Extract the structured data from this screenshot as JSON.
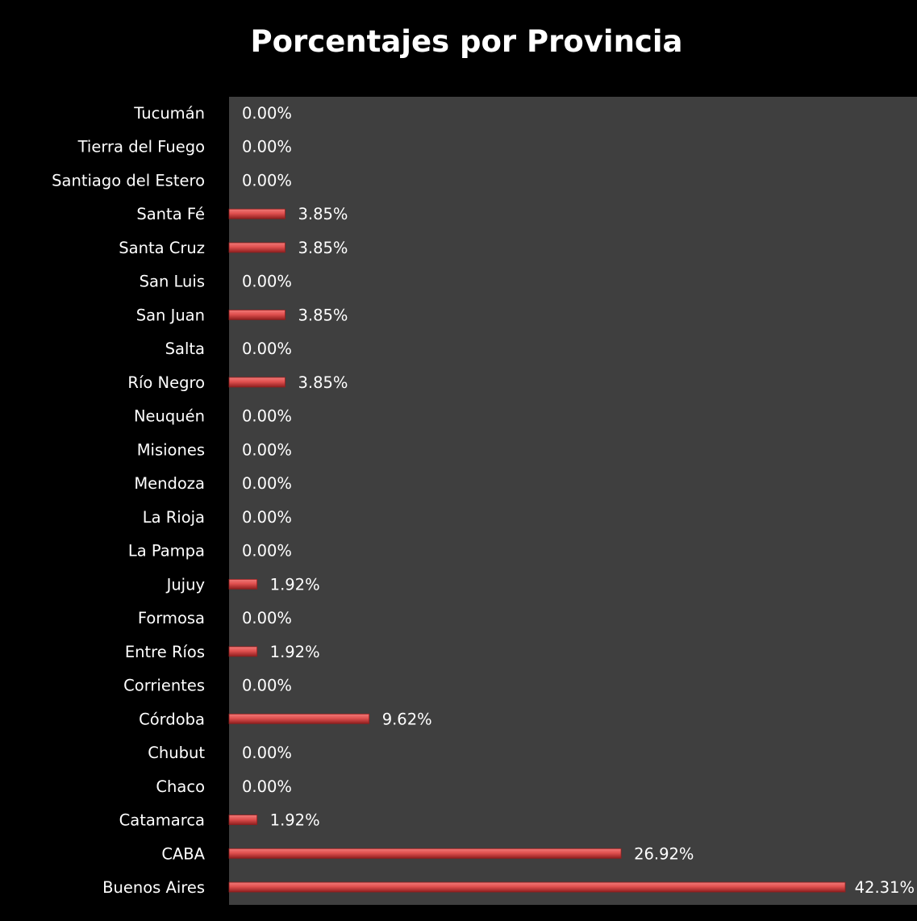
{
  "chart_data": {
    "type": "bar",
    "orientation": "horizontal",
    "title": "Porcentajes por Provincia",
    "categories": [
      "Tucumán",
      "Tierra del Fuego",
      "Santiago del Estero",
      "Santa Fé",
      "Santa Cruz",
      "San Luis",
      "San Juan",
      "Salta",
      "Río Negro",
      "Neuquén",
      "Misiones",
      "Mendoza",
      "La Rioja",
      "La Pampa",
      "Jujuy",
      "Formosa",
      "Entre Ríos",
      "Corrientes",
      "Córdoba",
      "Chubut",
      "Chaco",
      "Catamarca",
      "CABA",
      "Buenos Aires"
    ],
    "values": [
      0,
      0,
      0,
      3.85,
      3.85,
      0,
      3.85,
      0,
      3.85,
      0,
      0,
      0,
      0,
      0,
      1.92,
      0,
      1.92,
      0,
      9.62,
      0,
      0,
      1.92,
      26.92,
      42.31
    ],
    "value_labels": [
      "0.00%",
      "0.00%",
      "0.00%",
      "3.85%",
      "3.85%",
      "0.00%",
      "3.85%",
      "0.00%",
      "3.85%",
      "0.00%",
      "0.00%",
      "0.00%",
      "0.00%",
      "0.00%",
      "1.92%",
      "0.00%",
      "1.92%",
      "0.00%",
      "9.62%",
      "0.00%",
      "0.00%",
      "1.92%",
      "26.92%",
      "42.31%"
    ],
    "xlim": [
      0,
      45
    ],
    "grid": false,
    "legend": "none",
    "colors": {
      "background": "#000000",
      "plot_area": "#3f3f3f",
      "bar": "#e0504f",
      "bar_dark": "#8f1f1f",
      "text": "#ffffff"
    }
  }
}
